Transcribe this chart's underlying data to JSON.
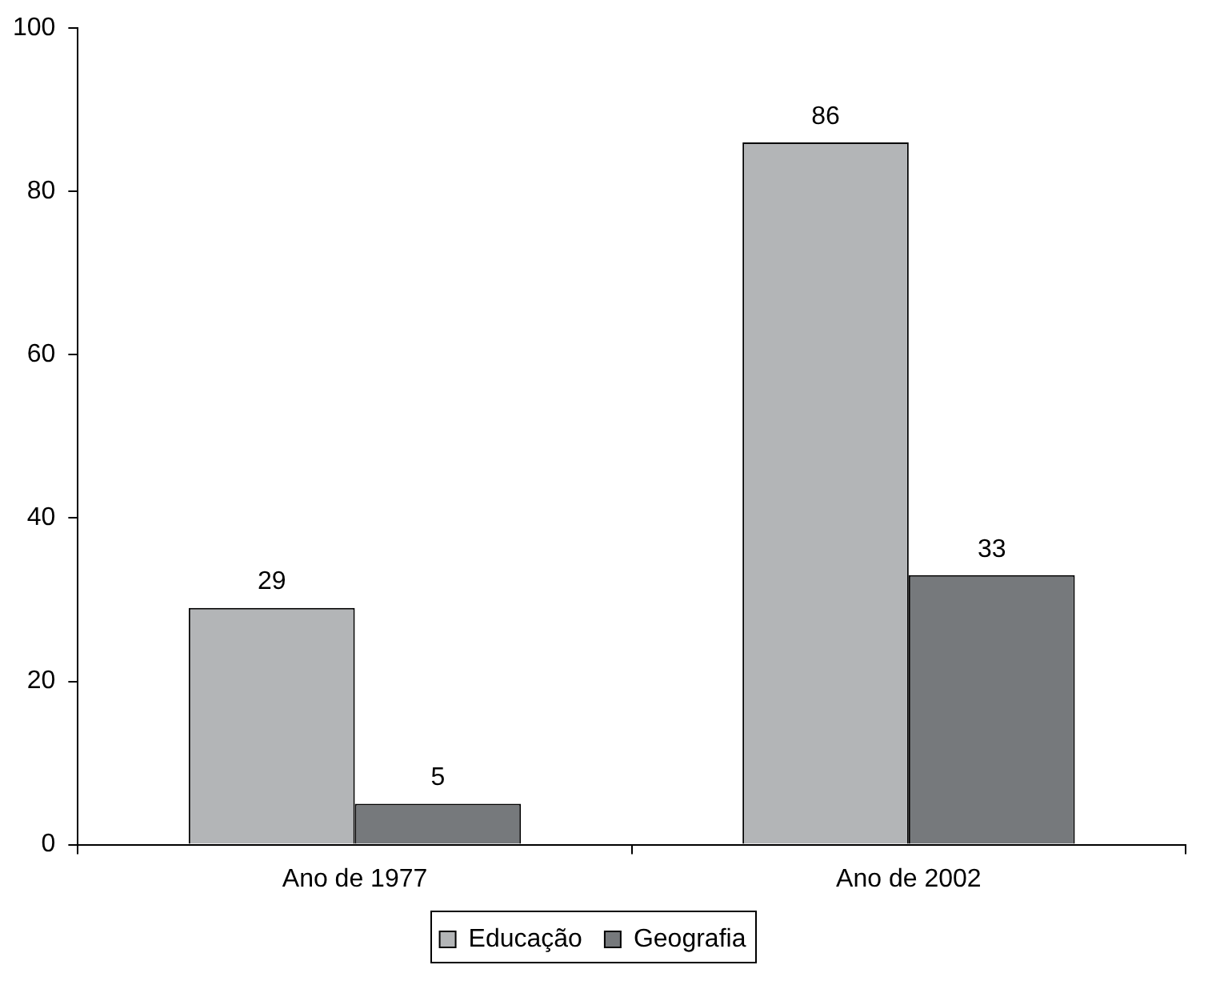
{
  "chart_data": {
    "type": "bar",
    "categories": [
      "Ano de 1977",
      "Ano de 2002"
    ],
    "series": [
      {
        "name": "Educação",
        "color": "#b3b5b7",
        "values": [
          29,
          86
        ]
      },
      {
        "name": "Geografia",
        "color": "#76797c",
        "values": [
          5,
          33
        ]
      }
    ],
    "ylim": [
      0,
      100
    ],
    "yticks": [
      0,
      20,
      40,
      60,
      80,
      100
    ],
    "grid": false,
    "legend": "bottom",
    "data_labels": true
  }
}
